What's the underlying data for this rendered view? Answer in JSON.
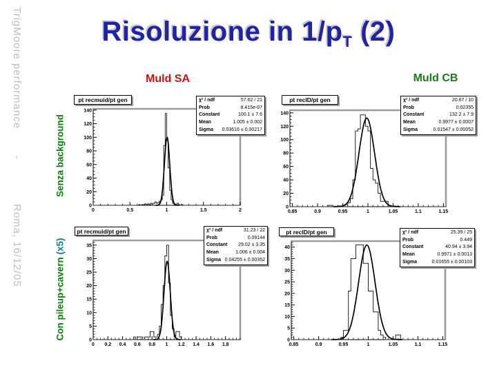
{
  "slide": {
    "title": {
      "main": "Risoluzione in 1/p",
      "sub": "T",
      "tail": " (2)"
    },
    "footer": {
      "part1": "TrigMoore performance",
      "part2": "-",
      "part3": "Roma, 16/12/05"
    },
    "columns": {
      "left": "Muld SA",
      "right": "Muld CB"
    },
    "rows": {
      "top": "Senza background",
      "bottom_main": "Con pileup+cavern ",
      "bottom_accent": "(x5)"
    },
    "colors": {
      "title": "#2222a8",
      "title_shadow": "#c6c6d4",
      "col_left": "#cc1111",
      "col_right": "#1b7a1b",
      "row_green": "#0b7d0b",
      "row_teal": "#0c7f87",
      "footer": "#bdbdbd"
    }
  },
  "chart_data": [
    {
      "type": "histogram",
      "name": "muld-sa-senza-background",
      "title": "pt recmuid/pt gen",
      "x": {
        "min": 0,
        "max": 2,
        "majors": [
          0,
          0.5,
          1,
          1.5,
          2
        ],
        "labels": [
          "0",
          "0.5",
          "1",
          "1.5",
          "2"
        ],
        "minor_step": 0.1
      },
      "y": {
        "max": 141.8,
        "majors": [
          0,
          20,
          40,
          60,
          80,
          100,
          120,
          140
        ],
        "minor_step": 5
      },
      "bins": {
        "start": 0.6,
        "width": 0.02,
        "counts": [
          0,
          1,
          0,
          1,
          1,
          2,
          1,
          2,
          1,
          3,
          2,
          3,
          5,
          3,
          4,
          6,
          8,
          15,
          88,
          135,
          96,
          55,
          22,
          8,
          3,
          2,
          1,
          3,
          1,
          0,
          1
        ]
      },
      "fit": {
        "type": "gaus",
        "constant": 100.1,
        "mean": 1.005,
        "sigma": 0.03616
      },
      "stats": [
        [
          "χ² / ndf",
          "57.62 / 21"
        ],
        [
          "Prob",
          "8.415e-07"
        ],
        [
          "Constant",
          "100.1 ± 7.6"
        ],
        [
          "Mean",
          "1.005 ± 0.002"
        ],
        [
          "Sigma",
          "0.03616 ± 0.00217"
        ]
      ]
    },
    {
      "type": "histogram",
      "name": "muld-cb-senza-background",
      "title": "pt recID/pt gen",
      "x": {
        "min": 0.845,
        "max": 1.155,
        "majors": [
          0.85,
          0.9,
          0.95,
          1,
          1.05,
          1.1,
          1.15
        ],
        "labels": [
          "0.85",
          "0.9",
          "0.95",
          "1",
          "1.05",
          "1.1",
          "1.15"
        ],
        "minor_step": 0.01
      },
      "y": {
        "max": 143.9,
        "majors": [
          0,
          20,
          40,
          60,
          80,
          100,
          120,
          140
        ],
        "minor_step": 5
      },
      "bins": {
        "start": 0.92,
        "width": 0.005,
        "counts": [
          2,
          2,
          0,
          0,
          1,
          1,
          2,
          3,
          6,
          12,
          40,
          113,
          116,
          137,
          137,
          120,
          113,
          57,
          40,
          35,
          20,
          8,
          8,
          8,
          2,
          1,
          1
        ]
      },
      "fit": {
        "type": "gaus",
        "constant": 132.2,
        "mean": 0.9977,
        "sigma": 0.01547
      },
      "stats": [
        [
          "χ² / ndf",
          "20.67 / 10"
        ],
        [
          "Prob",
          "0.02355"
        ],
        [
          "Constant",
          "132.2 ± 7.9"
        ],
        [
          "Mean",
          "0.9977 ± 0.0007"
        ],
        [
          "Sigma",
          "0.01547 ± 0.00052"
        ]
      ]
    },
    {
      "type": "histogram",
      "name": "muld-sa-pileup-cavern",
      "title": "pt recmuid/pt gen",
      "x": {
        "min": 0,
        "max": 2,
        "majors": [
          0,
          0.2,
          0.4,
          0.6,
          0.8,
          1,
          1.2,
          1.4,
          1.6,
          1.8
        ],
        "labels": [
          "0",
          "0.2",
          "0.4",
          "0.6",
          "0.8",
          "1",
          "1.2",
          "1.4",
          "1.6",
          "1.8"
        ],
        "minor_step": 0.05
      },
      "y": {
        "max": 36.75,
        "majors": [
          0,
          5,
          10,
          15,
          20,
          25,
          30,
          35
        ],
        "minor_step": 1
      },
      "bins": {
        "start": 0.55,
        "width": 0.025,
        "counts": [
          1,
          0,
          1,
          1,
          1,
          0,
          1,
          1,
          1,
          3,
          3,
          1,
          1,
          2,
          5,
          13,
          20,
          31,
          35,
          21,
          9,
          4,
          1,
          3,
          3,
          1
        ]
      },
      "fit": {
        "type": "gaus",
        "constant": 29.02,
        "mean": 1.006,
        "sigma": 0.04255
      },
      "stats": [
        [
          "χ² / ndf",
          "31.23 / 22"
        ],
        [
          "Prob",
          "0.09144"
        ],
        [
          "Constant",
          "29.02 ± 3.35"
        ],
        [
          "Mean",
          "1.006 ± 0.004"
        ],
        [
          "Sigma",
          "0.04255 ± 0.00352"
        ]
      ]
    },
    {
      "type": "histogram",
      "name": "muld-cb-pileup-cavern",
      "title": "pt recID/pt gen",
      "x": {
        "min": 0.845,
        "max": 1.155,
        "majors": [
          0.85,
          0.9,
          0.95,
          1,
          1.05,
          1.1,
          1.15
        ],
        "labels": [
          "0.85",
          "0.9",
          "0.95",
          "1",
          "1.05",
          "1.1",
          "1.15"
        ],
        "minor_step": 0.01
      },
      "y": {
        "max": 42.6,
        "majors": [
          0,
          5,
          10,
          15,
          20,
          25,
          30,
          35,
          40
        ],
        "minor_step": 1
      },
      "bins": {
        "start": 0.945,
        "width": 0.005,
        "counts": [
          1,
          4,
          4,
          21,
          35,
          35,
          41,
          41,
          41,
          33,
          33,
          21,
          21,
          12,
          12,
          4,
          2,
          1,
          0,
          0,
          0,
          0,
          2,
          2
        ]
      },
      "fit": {
        "type": "gaus",
        "constant": 40.94,
        "mean": 0.9971,
        "sigma": 0.01655
      },
      "stats": [
        [
          "χ² / ndf",
          "25.39 / 25"
        ],
        [
          "Prob",
          "0.449"
        ],
        [
          "Constant",
          "40.94 ± 3.94"
        ],
        [
          "Mean",
          "0.9971 ± 0.0013"
        ],
        [
          "Sigma",
          "0.01655 ± 0.00103"
        ]
      ]
    }
  ]
}
